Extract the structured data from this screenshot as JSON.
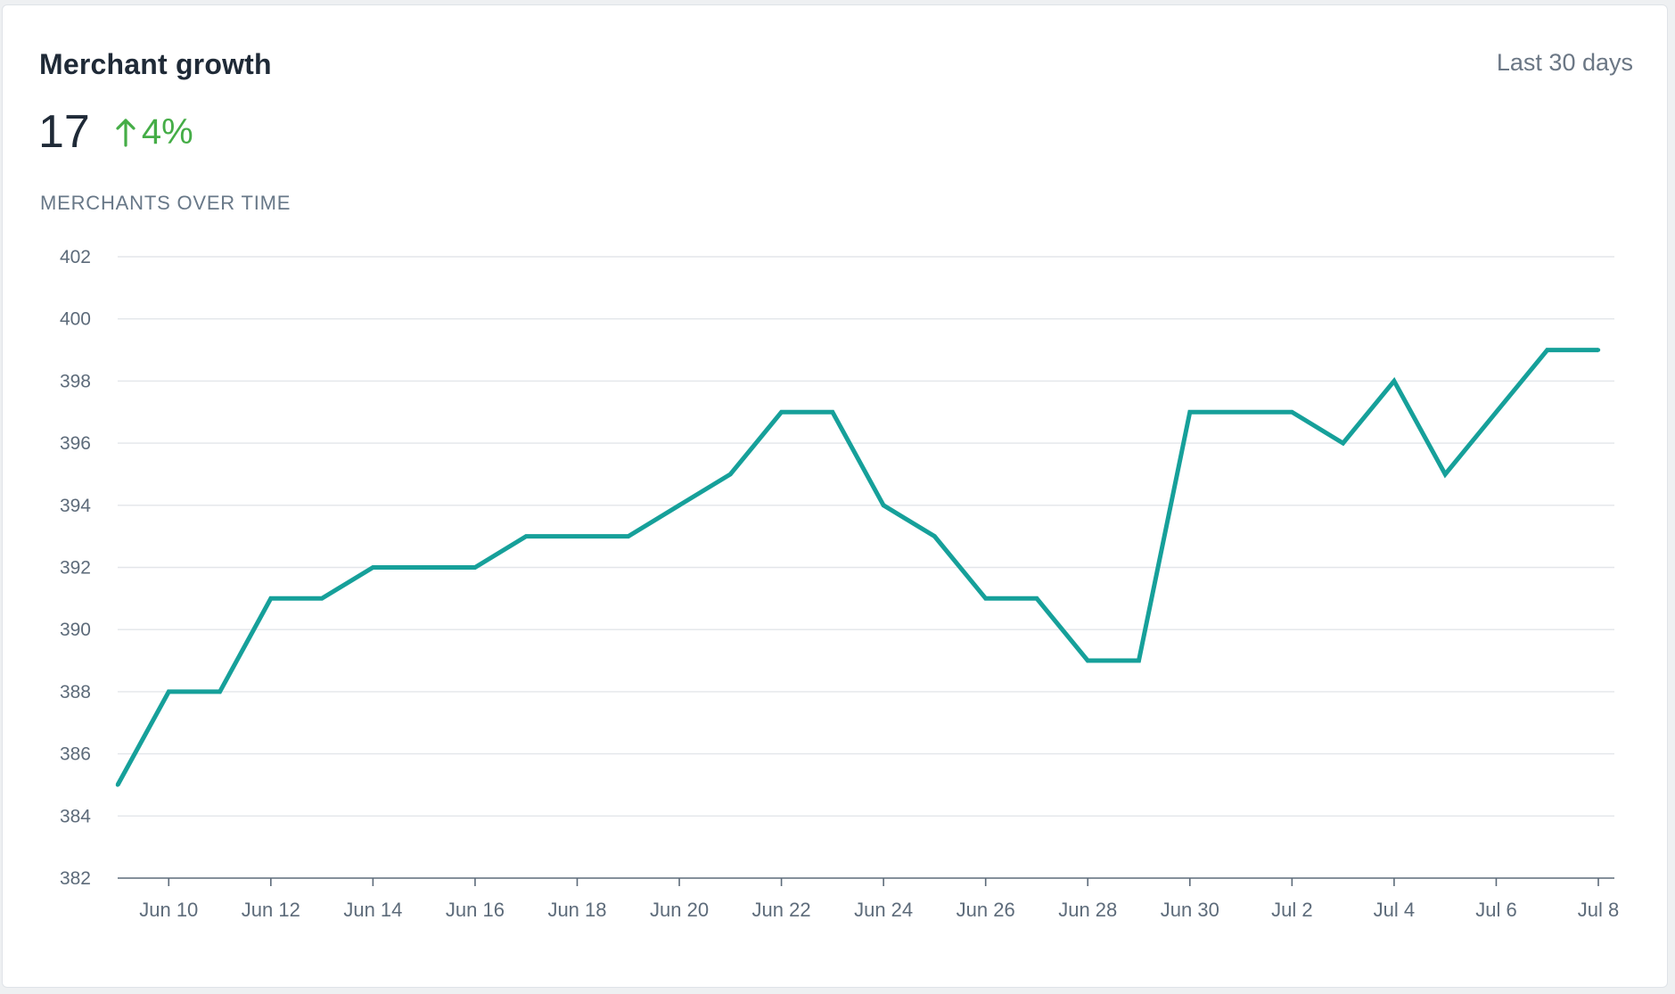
{
  "card": {
    "title": "Merchant growth",
    "range_label": "Last 30 days",
    "metric_value": "17",
    "delta_text": "4%",
    "delta_direction": "up",
    "delta_icon": "arrow-up-icon",
    "section_label": "MERCHANTS OVER TIME"
  },
  "colors": {
    "line": "#16a09a",
    "delta": "#45ad47",
    "grid": "#e3e6ea",
    "axis": "#5d6b7a"
  },
  "chart_data": {
    "type": "line",
    "title": "",
    "xlabel": "",
    "ylabel": "",
    "ylim": [
      382,
      402
    ],
    "yticks": [
      382,
      384,
      386,
      388,
      390,
      392,
      394,
      396,
      398,
      400,
      402
    ],
    "x_range": [
      "Jun 9",
      "Jul 8"
    ],
    "xtick_labels": [
      "Jun 10",
      "Jun 12",
      "Jun 14",
      "Jun 16",
      "Jun 18",
      "Jun 20",
      "Jun 22",
      "Jun 24",
      "Jun 26",
      "Jun 28",
      "Jun 30",
      "Jul 2",
      "Jul 4",
      "Jul 6",
      "Jul 8"
    ],
    "grid": true,
    "legend": "none",
    "series": [
      {
        "x": [
          "Jun 9",
          "Jun 10",
          "Jun 11",
          "Jun 12",
          "Jun 13",
          "Jun 14",
          "Jun 15",
          "Jun 16",
          "Jun 17",
          "Jun 18",
          "Jun 19",
          "Jun 20",
          "Jun 21",
          "Jun 22",
          "Jun 23",
          "Jun 24",
          "Jun 25",
          "Jun 26",
          "Jun 27",
          "Jun 28",
          "Jun 29",
          "Jun 30",
          "Jul 1",
          "Jul 2",
          "Jul 3",
          "Jul 4",
          "Jul 5",
          "Jul 6",
          "Jul 7",
          "Jul 8"
        ],
        "values": [
          385,
          388,
          388,
          391,
          391,
          392,
          392,
          392,
          393,
          393,
          393,
          394,
          395,
          397,
          397,
          394,
          393,
          391,
          391,
          389,
          389,
          397,
          397,
          397,
          396,
          398,
          395,
          397,
          399,
          399
        ]
      }
    ]
  }
}
